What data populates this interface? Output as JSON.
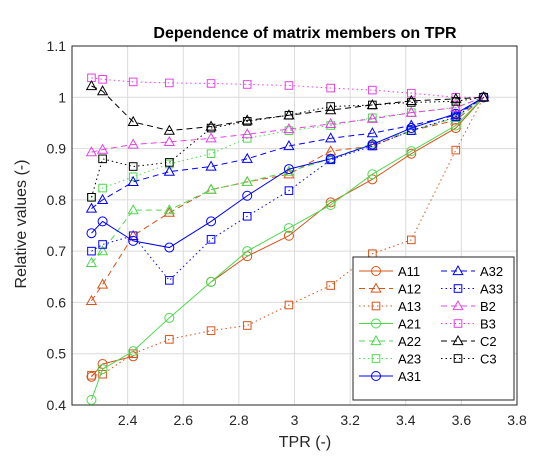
{
  "chart_data": {
    "type": "line",
    "title": "Dependence of matrix members on TPR",
    "xlabel": "TPR (-)",
    "ylabel": "Relative values (-)",
    "xlim": [
      2.2,
      3.8
    ],
    "ylim": [
      0.4,
      1.1
    ],
    "xticks": [
      "2.4",
      "2.6",
      "2.8",
      "3",
      "3.2",
      "3.4",
      "3.6",
      "3.8"
    ],
    "yticks": [
      "0.4",
      "0.5",
      "0.6",
      "0.7",
      "0.8",
      "0.9",
      "1",
      "1.1"
    ],
    "grid": true,
    "legend_position": "bottom-right",
    "x": [
      2.27,
      2.31,
      2.42,
      2.55,
      2.7,
      2.83,
      2.98,
      3.13,
      3.28,
      3.42,
      3.58,
      3.68
    ],
    "series": [
      {
        "name": "A11",
        "color": "#D95319",
        "dash": "solid",
        "marker": "circle",
        "values": [
          0.455,
          0.48,
          0.495,
          null,
          0.64,
          0.69,
          0.73,
          0.795,
          0.84,
          0.89,
          0.94,
          1.0
        ]
      },
      {
        "name": "A12",
        "color": "#D95319",
        "dash": "dashed",
        "marker": "triangle",
        "values": [
          0.603,
          0.635,
          0.73,
          0.775,
          0.82,
          0.835,
          0.85,
          0.895,
          0.905,
          0.935,
          0.955,
          1.0
        ]
      },
      {
        "name": "A13",
        "color": "#D95319",
        "dash": "dotted",
        "marker": "square",
        "values": [
          0.458,
          0.46,
          0.5,
          0.528,
          0.545,
          0.555,
          0.595,
          0.633,
          0.695,
          0.722,
          0.897,
          1.0
        ]
      },
      {
        "name": "A21",
        "color": "#4DD94D",
        "dash": "solid",
        "marker": "circle",
        "values": [
          0.41,
          0.47,
          0.505,
          0.57,
          0.64,
          0.7,
          0.745,
          0.79,
          0.85,
          0.895,
          0.945,
          1.0
        ]
      },
      {
        "name": "A22",
        "color": "#4DD94D",
        "dash": "dashed",
        "marker": "triangle",
        "values": [
          0.677,
          0.7,
          0.78,
          0.78,
          0.82,
          0.835,
          0.855,
          0.88,
          0.91,
          0.935,
          0.96,
          1.0
        ]
      },
      {
        "name": "A23",
        "color": "#4DD94D",
        "dash": "dotted",
        "marker": "square",
        "values": [
          0.805,
          0.823,
          0.845,
          0.87,
          0.89,
          0.92,
          0.935,
          0.945,
          0.96,
          0.97,
          0.98,
          1.0
        ]
      },
      {
        "name": "A31",
        "color": "#0000FF",
        "dash": "solid",
        "marker": "circle",
        "values": [
          0.735,
          0.758,
          0.72,
          0.707,
          0.758,
          0.808,
          0.86,
          0.88,
          0.908,
          0.94,
          0.968,
          1.0
        ]
      },
      {
        "name": "A32",
        "color": "#0000FF",
        "dash": "dashed",
        "marker": "triangle",
        "values": [
          0.783,
          0.8,
          0.835,
          0.855,
          0.865,
          0.88,
          0.905,
          0.92,
          0.93,
          0.945,
          0.965,
          1.0
        ]
      },
      {
        "name": "A33",
        "color": "#0000FF",
        "dash": "dotted",
        "marker": "square",
        "values": [
          0.7,
          0.713,
          0.73,
          0.643,
          0.723,
          0.768,
          0.818,
          0.878,
          0.905,
          0.935,
          0.962,
          1.0
        ]
      },
      {
        "name": "B2",
        "color": "#E642E6",
        "dash": "dashed",
        "marker": "triangle",
        "values": [
          0.893,
          0.898,
          0.908,
          0.913,
          0.92,
          0.928,
          0.938,
          0.948,
          0.958,
          0.97,
          0.98,
          1.0
        ]
      },
      {
        "name": "B3",
        "color": "#E642E6",
        "dash": "dotted",
        "marker": "square",
        "values": [
          1.038,
          1.035,
          1.03,
          1.028,
          1.027,
          1.025,
          1.023,
          1.018,
          1.014,
          1.008,
          1.0,
          1.0
        ]
      },
      {
        "name": "C2",
        "color": "#000000",
        "dash": "dashed",
        "marker": "triangle",
        "values": [
          1.022,
          1.012,
          0.952,
          0.935,
          0.943,
          0.955,
          0.965,
          0.975,
          0.985,
          0.993,
          0.997,
          1.0
        ]
      },
      {
        "name": "C3",
        "color": "#000000",
        "dash": "dotted",
        "marker": "square",
        "values": [
          0.805,
          0.88,
          0.865,
          0.873,
          0.94,
          0.953,
          0.965,
          0.982,
          0.985,
          0.99,
          0.992,
          1.0
        ]
      }
    ]
  }
}
